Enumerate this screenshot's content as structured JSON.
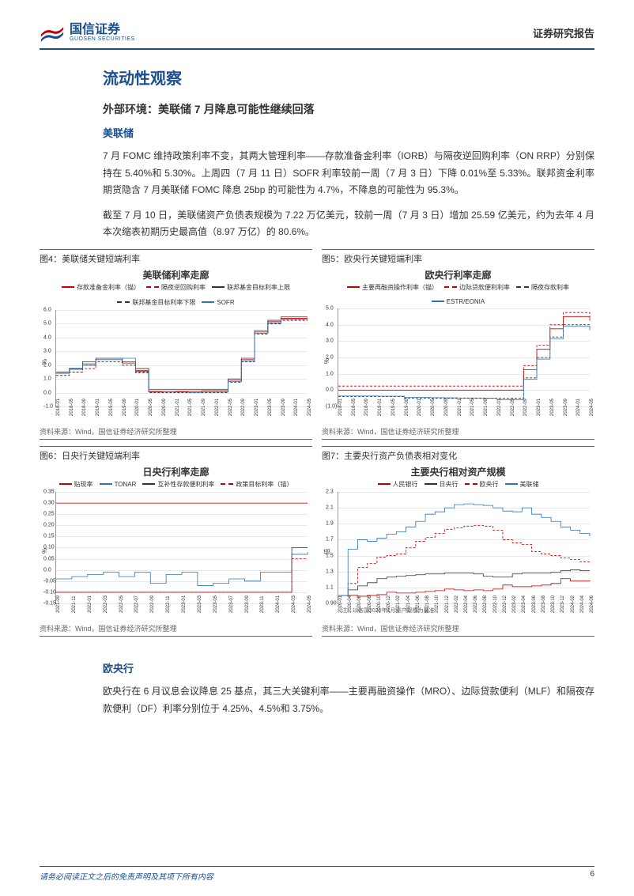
{
  "header": {
    "company_cn": "国信证券",
    "company_en": "GUOSEN SECURITIES",
    "doc_type": "证券研究报告"
  },
  "section": {
    "title": "流动性观察",
    "subtitle": "外部环境：美联储 7 月降息可能性继续回落",
    "heading_fed": "美联储",
    "para1": "7 月 FOMC 维持政策利率不变，其两大管理利率——存款准备金利率（IORB）与隔夜逆回购利率（ON RRP）分别保持在 5.40%和 5.30%。上周四（7 月 11 日）SOFR 利率较前一周（7 月 3 日）下降 0.01%至 5.33%。联邦资金利率期货隐含 7 月美联储 FOMC 降息 25bp 的可能性为 4.7%，不降息的可能性为 95.3%。",
    "para2": "截至 7 月 10 日，美联储资产负债表规模为 7.22 万亿美元，较前一周（7 月 3 日）增加 25.59 亿美元，约为去年 4 月本次缩表初期历史最高值（8.97 万亿）的 80.6%。",
    "heading_ecb": "欧央行",
    "para3": "欧央行在 6 月议息会议降息 25 基点，其三大关键利率——主要再融资操作（MRO）、边际贷款便利（MLF）和隔夜存款便利（DF）利率分别位于 4.25%、4.5%和 3.75%。"
  },
  "charts": {
    "fig4": {
      "label": "图4：美联储关键短端利率",
      "title": "美联储利率走廊",
      "ylabel": "%",
      "ylim": [
        -1.0,
        6.0
      ],
      "yticks": [
        -1.0,
        0.0,
        1.0,
        2.0,
        3.0,
        4.0,
        5.0,
        6.0
      ],
      "xticks": [
        "2018-01",
        "2018-05",
        "2018-09",
        "2019-01",
        "2019-05",
        "2019-09",
        "2020-01",
        "2020-05",
        "2020-09",
        "2021-01",
        "2021-05",
        "2021-09",
        "2022-01",
        "2022-05",
        "2022-09",
        "2023-01",
        "2023-05",
        "2023-09",
        "2024-01",
        "2024-05"
      ],
      "series": [
        {
          "name": "存款准备金利率（锚）",
          "color": "#c00000",
          "dash": false,
          "values": [
            1.5,
            1.75,
            2.0,
            2.4,
            2.4,
            2.15,
            1.6,
            0.1,
            0.1,
            0.1,
            0.1,
            0.15,
            0.15,
            0.9,
            2.4,
            4.4,
            5.15,
            5.4,
            5.4,
            5.4
          ]
        },
        {
          "name": "隔夜逆回购利率",
          "color": "#c00000",
          "dash": true,
          "values": [
            1.25,
            1.5,
            1.75,
            2.25,
            2.25,
            2.0,
            1.45,
            0.0,
            0.0,
            0.0,
            0.0,
            0.05,
            0.05,
            0.8,
            2.3,
            4.3,
            5.05,
            5.3,
            5.3,
            5.3
          ]
        },
        {
          "name": "联邦基金目标利率上限",
          "color": "#333333",
          "dash": false,
          "values": [
            1.5,
            1.75,
            2.25,
            2.5,
            2.5,
            2.25,
            1.75,
            0.25,
            0.25,
            0.25,
            0.25,
            0.25,
            0.25,
            1.0,
            2.5,
            4.5,
            5.25,
            5.5,
            5.5,
            5.5
          ]
        },
        {
          "name": "联邦基金目标利率下限",
          "color": "#333333",
          "dash": true,
          "values": [
            1.25,
            1.5,
            2.0,
            2.25,
            2.25,
            2.0,
            1.5,
            0.0,
            0.0,
            0.0,
            0.0,
            0.0,
            0.0,
            0.75,
            2.25,
            4.25,
            5.0,
            5.25,
            5.25,
            5.25
          ]
        },
        {
          "name": "SOFR",
          "color": "#2e75b6",
          "dash": false,
          "values": [
            1.4,
            1.7,
            2.1,
            2.4,
            2.4,
            2.5,
            1.55,
            0.05,
            0.08,
            0.05,
            0.02,
            0.05,
            0.05,
            0.8,
            2.3,
            4.3,
            5.06,
            5.32,
            5.32,
            5.33
          ]
        }
      ],
      "source": "资料来源：Wind，国信证券经济研究所整理",
      "grid_color": "#e8e8e8",
      "background_color": "#ffffff"
    },
    "fig5": {
      "label": "图5：欧央行关键短端利率",
      "title": "欧央行利率走廊",
      "ylabel": "%",
      "ylim": [
        -1.0,
        5.0
      ],
      "yticks": [
        -1.0,
        0.0,
        1.0,
        2.0,
        3.0,
        4.0,
        5.0
      ],
      "ytick_labels": [
        "(1.0)",
        "0.0",
        "1.0",
        "2.0",
        "3.0",
        "4.0",
        "5.0"
      ],
      "xticks": [
        "2018-01",
        "2018-05",
        "2018-09",
        "2019-01",
        "2019-05",
        "2019-09",
        "2020-01",
        "2020-05",
        "2020-09",
        "2021-01",
        "2021-05",
        "2021-09",
        "2022-01",
        "2022-05",
        "2022-09",
        "2023-01",
        "2023-05",
        "2023-09",
        "2024-01",
        "2024-05"
      ],
      "series": [
        {
          "name": "主要再融资操作利率（锚）",
          "color": "#c00000",
          "dash": false,
          "values": [
            0.0,
            0.0,
            0.0,
            0.0,
            0.0,
            0.0,
            0.0,
            0.0,
            0.0,
            0.0,
            0.0,
            0.0,
            0.0,
            0.0,
            1.25,
            2.5,
            3.75,
            4.5,
            4.5,
            4.25
          ]
        },
        {
          "name": "边际贷款便利利率",
          "color": "#c00000",
          "dash": true,
          "values": [
            0.25,
            0.25,
            0.25,
            0.25,
            0.25,
            0.25,
            0.25,
            0.25,
            0.25,
            0.25,
            0.25,
            0.25,
            0.25,
            0.25,
            1.5,
            2.75,
            4.0,
            4.75,
            4.75,
            4.5
          ]
        },
        {
          "name": "隔夜存款利率",
          "color": "#333333",
          "dash": true,
          "values": [
            -0.4,
            -0.4,
            -0.4,
            -0.4,
            -0.4,
            -0.5,
            -0.5,
            -0.5,
            -0.5,
            -0.5,
            -0.5,
            -0.5,
            -0.5,
            -0.5,
            0.75,
            2.0,
            3.25,
            4.0,
            4.0,
            3.75
          ]
        },
        {
          "name": "ESTR/EONIA",
          "color": "#2e75b6",
          "dash": false,
          "values": [
            -0.36,
            -0.36,
            -0.36,
            -0.37,
            -0.37,
            -0.45,
            -0.45,
            -0.46,
            -0.47,
            -0.48,
            -0.48,
            -0.49,
            -0.58,
            -0.58,
            0.66,
            1.9,
            3.15,
            3.9,
            3.9,
            3.66
          ]
        }
      ],
      "source": "资料来源：Wind，国信证券经济研究所整理",
      "grid_color": "#e8e8e8",
      "background_color": "#ffffff"
    },
    "fig6": {
      "label": "图6：日央行关键短端利率",
      "title": "日央行利率走廊",
      "ylabel": "%",
      "ylim": [
        -0.15,
        0.35
      ],
      "yticks": [
        -0.15,
        -0.1,
        -0.05,
        -0.0,
        0.05,
        0.1,
        0.15,
        0.2,
        0.25,
        0.3,
        0.35
      ],
      "xticks": [
        "2021-09",
        "2021-11",
        "2022-01",
        "2022-03",
        "2022-05",
        "2022-07",
        "2022-09",
        "2022-11",
        "2023-01",
        "2023-03",
        "2023-05",
        "2023-07",
        "2023-09",
        "2023-11",
        "2024-01",
        "2024-03",
        "2024-05"
      ],
      "series": [
        {
          "name": "贴现率",
          "color": "#c00000",
          "dash": false,
          "values": [
            0.3,
            0.3,
            0.3,
            0.3,
            0.3,
            0.3,
            0.3,
            0.3,
            0.3,
            0.3,
            0.3,
            0.3,
            0.3,
            0.3,
            0.3,
            0.3,
            0.3
          ]
        },
        {
          "name": "TONAR",
          "color": "#2e75b6",
          "dash": false,
          "values": [
            -0.04,
            -0.03,
            -0.02,
            -0.01,
            -0.03,
            -0.01,
            -0.06,
            -0.02,
            -0.01,
            -0.07,
            -0.06,
            -0.04,
            -0.05,
            -0.01,
            -0.01,
            0.07,
            0.08
          ]
        },
        {
          "name": "互补性存款便利利率",
          "color": "#333333",
          "dash": false,
          "values": [
            -0.1,
            -0.1,
            -0.1,
            -0.1,
            -0.1,
            -0.1,
            -0.1,
            -0.1,
            -0.1,
            -0.1,
            -0.1,
            -0.1,
            -0.1,
            -0.1,
            -0.1,
            0.1,
            0.1
          ]
        },
        {
          "name": "政策目标利率（锚）",
          "color": "#c00000",
          "dash": true,
          "values": [
            -0.1,
            -0.1,
            -0.1,
            -0.1,
            -0.1,
            -0.1,
            -0.1,
            -0.1,
            -0.1,
            -0.1,
            -0.1,
            -0.1,
            -0.1,
            -0.1,
            -0.1,
            0.05,
            0.05
          ]
        }
      ],
      "source": "资料来源：Wind，国信证券经济研究所整理",
      "grid_color": "#e8e8e8",
      "background_color": "#ffffff"
    },
    "fig7": {
      "label": "图7：主要央行资产负债表相对变化",
      "title": "主要央行相对资产规模",
      "ylabel": "倍",
      "ylim": [
        0.9,
        2.3
      ],
      "yticks": [
        0.9,
        1.1,
        1.3,
        1.5,
        1.7,
        1.9,
        2.1,
        2.3
      ],
      "xticks": [
        "2020-01",
        "2020-04",
        "2020-06",
        "2020-08",
        "2020-10",
        "2020-12",
        "2021-02",
        "2021-04",
        "2021-06",
        "2021-08",
        "2021-10",
        "2021-12",
        "2022-02",
        "2022-04",
        "2022-06",
        "2022-08",
        "2022-10",
        "2022-12",
        "2023-02",
        "2023-04",
        "2023-06",
        "2023-08",
        "2023-10",
        "2023-12",
        "2024-02",
        "2024-04",
        "2024-06"
      ],
      "series": [
        {
          "name": "人民银行",
          "color": "#c00000",
          "dash": false,
          "values": [
            1.0,
            1.0,
            0.99,
            1.0,
            1.01,
            1.04,
            1.03,
            1.03,
            1.04,
            1.05,
            1.06,
            1.08,
            1.07,
            1.06,
            1.07,
            1.06,
            1.08,
            1.13,
            1.11,
            1.11,
            1.12,
            1.13,
            1.15,
            1.21,
            1.18,
            1.18,
            1.19
          ]
        },
        {
          "name": "日央行",
          "color": "#333333",
          "dash": false,
          "values": [
            1.0,
            1.07,
            1.12,
            1.16,
            1.21,
            1.23,
            1.24,
            1.25,
            1.26,
            1.27,
            1.27,
            1.28,
            1.28,
            1.28,
            1.27,
            1.24,
            1.23,
            1.23,
            1.27,
            1.28,
            1.28,
            1.28,
            1.29,
            1.31,
            1.32,
            1.31,
            1.31
          ]
        },
        {
          "name": "欧央行",
          "color": "#c00000",
          "dash": true,
          "values": [
            1.0,
            1.15,
            1.35,
            1.4,
            1.48,
            1.5,
            1.52,
            1.6,
            1.68,
            1.73,
            1.78,
            1.83,
            1.85,
            1.87,
            1.88,
            1.87,
            1.82,
            1.7,
            1.66,
            1.64,
            1.55,
            1.52,
            1.5,
            1.47,
            1.45,
            1.42,
            1.4
          ]
        },
        {
          "name": "美联储",
          "color": "#2e75b6",
          "dash": false,
          "values": [
            1.0,
            1.58,
            1.7,
            1.68,
            1.72,
            1.77,
            1.8,
            1.86,
            1.93,
            2.02,
            2.05,
            2.1,
            2.14,
            2.15,
            2.14,
            2.13,
            2.1,
            2.06,
            2.05,
            2.1,
            2.02,
            1.98,
            1.93,
            1.86,
            1.82,
            1.78,
            1.74
          ]
        }
      ],
      "note": "注：以各国2020年1月资产规模为基准",
      "source": "资料来源：Wind，国信证券经济研究所整理",
      "grid_color": "#e8e8e8",
      "background_color": "#ffffff"
    }
  },
  "footer": {
    "disclaimer": "请务必阅读正文之后的免责声明及其项下所有内容",
    "page": "6"
  },
  "colors": {
    "brand": "#1a4e8c",
    "red": "#c00000",
    "blue": "#2e75b6",
    "black": "#333333",
    "grid": "#e8e8e8"
  }
}
